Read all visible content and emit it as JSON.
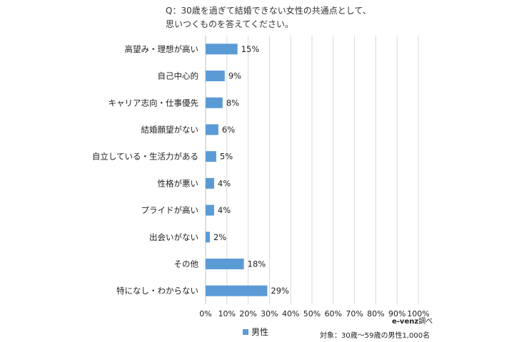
{
  "title_lines": [
    "Q：30歳を過ぎて結婚できない女性の共通点として、",
    "思いつくものを答えてください。"
  ],
  "chart_data": {
    "type": "bar",
    "orientation": "horizontal",
    "categories": [
      "高望み・理想が高い",
      "自己中心的",
      "キャリア志向・仕事優先",
      "結婚願望がない",
      "自立している・生活力がある",
      "性格が悪い",
      "プライドが高い",
      "出会いがない",
      "その他",
      "特になし・わからない"
    ],
    "series": [
      {
        "name": "男性",
        "values": [
          15,
          9,
          8,
          6,
          5,
          4,
          4,
          2,
          18,
          29
        ],
        "color": "#5b9bd5"
      }
    ],
    "value_labels": [
      "15%",
      "9%",
      "8%",
      "6%",
      "5%",
      "4%",
      "4%",
      "2%",
      "18%",
      "29%"
    ],
    "xlim": [
      0,
      100
    ],
    "x_ticks": [
      "0%",
      "10%",
      "20%",
      "30%",
      "40%",
      "50%",
      "60%",
      "70%",
      "80%",
      "90%",
      "100%"
    ],
    "grid": "vertical",
    "legend_position": "bottom"
  },
  "source": {
    "brand": "e-venz",
    "suffix": "調べ"
  },
  "target_note": "対象：30歳～59歳の男性1,000名",
  "colors": {
    "bar": "#5b9bd5",
    "grid": "#d9d9d9",
    "axis": "#bfbfbf"
  }
}
